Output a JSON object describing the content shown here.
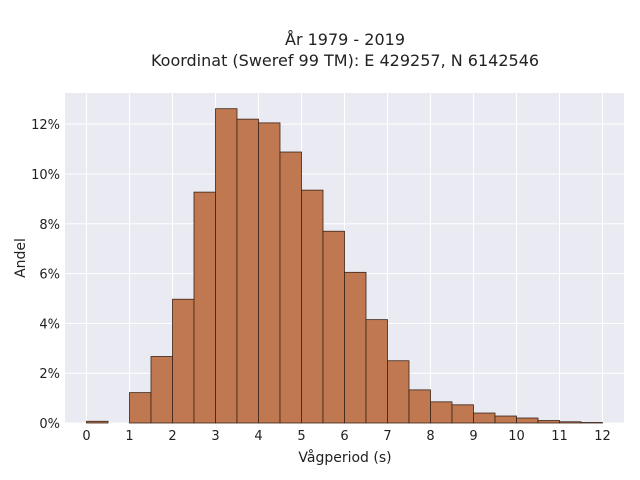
{
  "chart_data": {
    "type": "bar",
    "title_line1": "År 1979 - 2019",
    "title_line2": "Koordinat (Sweref 99 TM): E 429257, N 6142546",
    "xlabel": "Vågperiod (s)",
    "ylabel": "Andel",
    "xlim": [
      -0.5,
      12.5
    ],
    "ylim": [
      0,
      0.1325
    ],
    "x_ticks": [
      0,
      1,
      2,
      3,
      4,
      5,
      6,
      7,
      8,
      9,
      10,
      11,
      12
    ],
    "x_tick_labels": [
      "0",
      "1",
      "2",
      "3",
      "4",
      "5",
      "6",
      "7",
      "8",
      "9",
      "10",
      "11",
      "12"
    ],
    "y_ticks": [
      0,
      0.02,
      0.04,
      0.06,
      0.08,
      0.1,
      0.12
    ],
    "y_tick_labels": [
      "0%",
      "2%",
      "4%",
      "6%",
      "8%",
      "10%",
      "12%"
    ],
    "bin_width": 0.5,
    "bins": [
      {
        "x0": 0.0,
        "x1": 0.5,
        "value": 0.0007
      },
      {
        "x0": 1.0,
        "x1": 1.5,
        "value": 0.0122
      },
      {
        "x0": 1.5,
        "x1": 2.0,
        "value": 0.0267
      },
      {
        "x0": 2.0,
        "x1": 2.5,
        "value": 0.0497
      },
      {
        "x0": 2.5,
        "x1": 3.0,
        "value": 0.0927
      },
      {
        "x0": 3.0,
        "x1": 3.5,
        "value": 0.1262
      },
      {
        "x0": 3.5,
        "x1": 4.0,
        "value": 0.122
      },
      {
        "x0": 4.0,
        "x1": 4.5,
        "value": 0.1205
      },
      {
        "x0": 4.5,
        "x1": 5.0,
        "value": 0.1088
      },
      {
        "x0": 5.0,
        "x1": 5.5,
        "value": 0.0935
      },
      {
        "x0": 5.5,
        "x1": 6.0,
        "value": 0.077
      },
      {
        "x0": 6.0,
        "x1": 6.5,
        "value": 0.0605
      },
      {
        "x0": 6.5,
        "x1": 7.0,
        "value": 0.0415
      },
      {
        "x0": 7.0,
        "x1": 7.5,
        "value": 0.025
      },
      {
        "x0": 7.5,
        "x1": 8.0,
        "value": 0.0133
      },
      {
        "x0": 8.0,
        "x1": 8.5,
        "value": 0.0085
      },
      {
        "x0": 8.5,
        "x1": 9.0,
        "value": 0.0073
      },
      {
        "x0": 9.0,
        "x1": 9.5,
        "value": 0.004
      },
      {
        "x0": 9.5,
        "x1": 10.0,
        "value": 0.0028
      },
      {
        "x0": 10.0,
        "x1": 10.5,
        "value": 0.002
      },
      {
        "x0": 10.5,
        "x1": 11.0,
        "value": 0.001
      },
      {
        "x0": 11.0,
        "x1": 11.5,
        "value": 0.0005
      },
      {
        "x0": 11.5,
        "x1": 12.0,
        "value": 0.0002
      }
    ],
    "grid": true,
    "colors": {
      "bar_fill": "#c07850",
      "bar_edge": "#3a2418",
      "plot_background": "#eaeaf2",
      "grid": "#ffffff"
    }
  }
}
